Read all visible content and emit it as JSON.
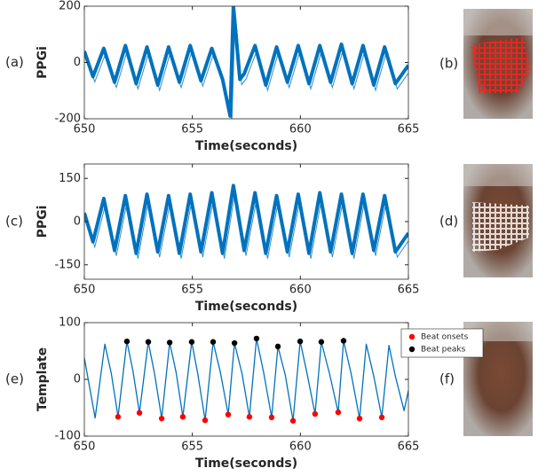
{
  "chart_data": [
    {
      "type": "line",
      "panel_label": "(a)",
      "ylabel": "PPGi",
      "xlabel": "Time(seconds)",
      "xlim": [
        650,
        665
      ],
      "xticks": [
        650,
        655,
        660,
        665
      ],
      "ylim": [
        -200,
        200
      ],
      "yticks": [
        -200,
        0,
        200
      ],
      "series": [
        {
          "color": "#0072bd",
          "x": [
            650,
            650.4,
            650.9,
            651.4,
            651.9,
            652.4,
            652.9,
            653.4,
            653.9,
            654.4,
            654.9,
            655.4,
            655.9,
            656.4,
            656.75,
            656.9,
            657.2,
            657.4,
            657.9,
            658.4,
            658.9,
            659.4,
            659.9,
            660.4,
            660.9,
            661.4,
            661.9,
            662.4,
            662.9,
            663.4,
            663.9,
            664.4,
            665
          ],
          "values": [
            40,
            -50,
            50,
            -70,
            60,
            -75,
            55,
            -80,
            55,
            -70,
            60,
            -65,
            50,
            -60,
            -190,
            200,
            -60,
            -40,
            60,
            -80,
            55,
            -70,
            60,
            -75,
            60,
            -70,
            65,
            -75,
            60,
            -80,
            55,
            -75,
            -10
          ]
        }
      ]
    },
    {
      "type": "line",
      "panel_label": "(c)",
      "ylabel": "PPGi",
      "xlabel": "Time(seconds)",
      "xlim": [
        650,
        665
      ],
      "xticks": [
        650,
        655,
        660,
        665
      ],
      "ylim": [
        -200,
        200
      ],
      "yticks": [
        -150,
        0,
        150
      ],
      "series": [
        {
          "color": "#0072bd",
          "x": [
            650,
            650.4,
            650.9,
            651.4,
            651.9,
            652.4,
            652.9,
            653.4,
            653.9,
            654.4,
            654.9,
            655.4,
            655.9,
            656.4,
            656.9,
            657.4,
            657.9,
            658.4,
            658.9,
            659.4,
            659.9,
            660.4,
            660.9,
            661.4,
            661.9,
            662.4,
            662.9,
            663.4,
            663.9,
            664.4,
            665
          ],
          "values": [
            30,
            -70,
            80,
            -100,
            90,
            -110,
            95,
            -105,
            90,
            -110,
            95,
            -105,
            100,
            -110,
            125,
            -100,
            100,
            -110,
            90,
            -105,
            95,
            -110,
            100,
            -105,
            95,
            -110,
            95,
            -100,
            90,
            -105,
            -40
          ]
        }
      ]
    },
    {
      "type": "line",
      "panel_label": "(e)",
      "ylabel": "Template",
      "xlabel": "Time(seconds)",
      "xlim": [
        650,
        665
      ],
      "xticks": [
        650,
        655,
        660,
        665
      ],
      "ylim": [
        -100,
        100
      ],
      "yticks": [
        -100,
        0,
        100
      ],
      "legend": "upper right",
      "series": [
        {
          "color": "#0072bd",
          "x": [
            650,
            650.5,
            650.95,
            651.25,
            651.56,
            651.97,
            652.25,
            652.55,
            652.96,
            653.25,
            653.58,
            653.95,
            654.25,
            654.56,
            654.97,
            655.25,
            655.59,
            655.96,
            656.3,
            656.66,
            656.95,
            657.3,
            657.64,
            657.97,
            658.3,
            658.67,
            658.96,
            659.3,
            659.66,
            659.99,
            660.3,
            660.68,
            660.97,
            661.35,
            661.75,
            662.0,
            662.35,
            662.74,
            663.05,
            663.4,
            663.77,
            664.1,
            664.4,
            664.8,
            665
          ],
          "values": [
            38,
            -68,
            62,
            10,
            -66,
            67,
            15,
            -59,
            66,
            10,
            -69,
            65,
            12,
            -66,
            66,
            10,
            -72,
            66,
            12,
            -62,
            64,
            10,
            -66,
            72,
            12,
            -67,
            58,
            8,
            -73,
            67,
            12,
            -61,
            66,
            10,
            -58,
            68,
            10,
            -69,
            62,
            5,
            -67,
            60,
            5,
            -55,
            -20
          ]
        },
        {
          "name": "Beat onsets",
          "type": "scatter",
          "color": "#ff0000",
          "x": [
            651.56,
            652.55,
            653.58,
            654.56,
            655.59,
            656.66,
            657.64,
            658.67,
            659.66,
            660.68,
            661.75,
            662.74,
            663.77
          ],
          "values": [
            -66,
            -59,
            -69,
            -66,
            -72,
            -62,
            -66,
            -67,
            -73,
            -61,
            -58,
            -69,
            -67
          ]
        },
        {
          "name": "Beat peaks",
          "type": "scatter",
          "color": "#000000",
          "x": [
            651.97,
            652.96,
            653.95,
            654.97,
            655.96,
            656.95,
            657.97,
            658.96,
            659.99,
            660.97,
            662.0
          ],
          "values": [
            67,
            66,
            65,
            66,
            66,
            64,
            72,
            58,
            67,
            66,
            68
          ]
        }
      ]
    }
  ],
  "image_labels": [
    "(b)",
    "(d)",
    "(f)"
  ]
}
